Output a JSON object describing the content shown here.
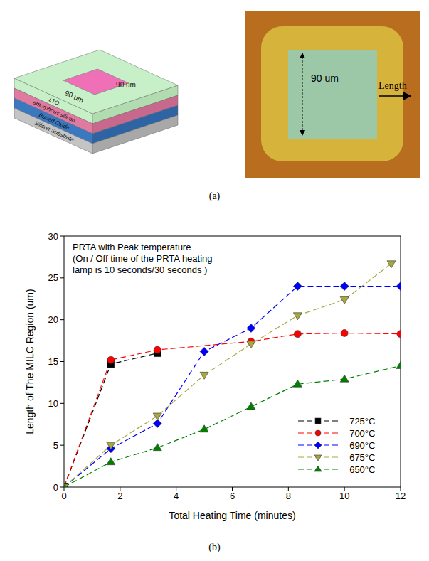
{
  "panel_labels": [
    "(a)",
    "(b)"
  ],
  "diagram": {
    "stack": {
      "layers": [
        "LTO",
        "amorphous silicon",
        "Buried Oxide",
        "Silicon Substrate"
      ],
      "window_width": "90 um",
      "window_length": "90 um"
    },
    "micrograph": {
      "width_label": "90 um",
      "arrow_label": "Length"
    }
  },
  "chart_data": {
    "type": "line",
    "annotations": [
      "PRTA with Peak temperature",
      "(On / Off time of the PRTA heating",
      "lamp is 10 seconds/30 seconds )"
    ],
    "x_label": "Total Heating Time (minutes)",
    "y_label": "Length of The MILC Region (um)",
    "xlim": [
      0,
      12
    ],
    "xticks": [
      0,
      2,
      4,
      6,
      8,
      10,
      12
    ],
    "ylim": [
      0,
      30
    ],
    "yticks": [
      0,
      5,
      10,
      15,
      20,
      25,
      30
    ],
    "legend": "lower right",
    "series": [
      {
        "name": "725°C",
        "color": "#000000",
        "marker": "square",
        "line_style": "dashed",
        "x": [
          0,
          1.67,
          3.33
        ],
        "values": [
          0,
          14.7,
          16.0
        ]
      },
      {
        "name": "700°C",
        "color": "#ff0000",
        "marker": "circle",
        "line_style": "dashed",
        "x": [
          0,
          1.67,
          3.33,
          6.67,
          8.33,
          10,
          12
        ],
        "values": [
          0,
          15.2,
          16.4,
          17.4,
          18.3,
          18.4,
          18.3
        ]
      },
      {
        "name": "690°C",
        "color": "#0000ff",
        "marker": "diamond",
        "line_style": "dashed",
        "x": [
          0,
          1.67,
          3.33,
          5,
          6.67,
          8.33,
          10,
          12
        ],
        "values": [
          0,
          4.6,
          7.6,
          16.2,
          19.0,
          24.0,
          24.0,
          24.0
        ]
      },
      {
        "name": "675°C",
        "color": "#a8a840",
        "marker": "triangle-down",
        "line_style": "dashed",
        "x": [
          0,
          1.67,
          3.33,
          5,
          6.67,
          8.33,
          10,
          11.67
        ],
        "values": [
          0,
          5.0,
          8.5,
          13.4,
          17.1,
          20.5,
          22.4,
          26.7
        ]
      },
      {
        "name": "650°C",
        "color": "#008000",
        "marker": "triangle-up",
        "line_style": "dashed",
        "x": [
          0,
          1.67,
          3.33,
          5,
          6.67,
          8.33,
          10,
          12
        ],
        "values": [
          0,
          3.0,
          4.7,
          6.9,
          9.6,
          12.3,
          12.9,
          14.5
        ]
      }
    ]
  }
}
